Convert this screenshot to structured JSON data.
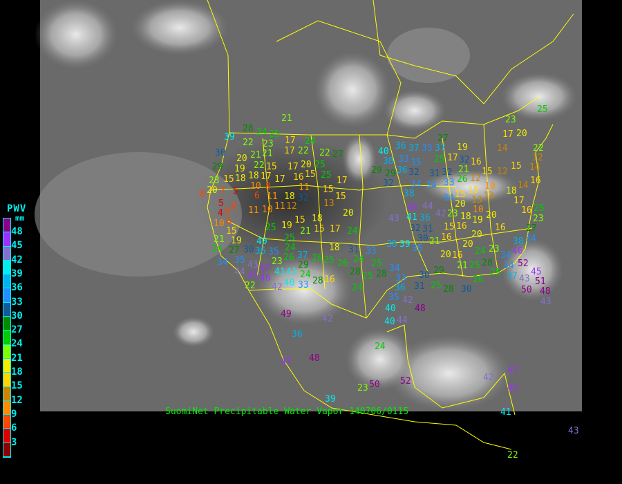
{
  "caption": "SuomiNet Precipitable Water Vapor 140706/0115",
  "legend": {
    "title": "PWV",
    "unit": "mm",
    "ticks": [
      "48",
      "45",
      "42",
      "39",
      "36",
      "33",
      "30",
      "27",
      "24",
      "21",
      "18",
      "15",
      "12",
      "9",
      "6",
      "3"
    ],
    "colors": [
      "#8b008b",
      "#9b30ff",
      "#8470d0",
      "#00eeee",
      "#00b2ee",
      "#1e90ff",
      "#105a9c",
      "#008b00",
      "#00cd00",
      "#7fff00",
      "#eeee00",
      "#ffd700",
      "#cd8500",
      "#ff8c00",
      "#ff4500",
      "#dd0000",
      "#8b0000"
    ]
  },
  "colors": {
    "boundaries": "#ffff00",
    "caption": "#00ee00",
    "background": "#000000"
  },
  "stations": [
    "21",
    "28",
    "24",
    "25",
    "39",
    "30",
    "22",
    "23",
    "21",
    "17",
    "24",
    "17",
    "22",
    "22",
    "27",
    "29",
    "20",
    "21",
    "22",
    "15",
    "19",
    "18",
    "17",
    "18",
    "17",
    "10",
    "8",
    "29",
    "23",
    "20",
    "15",
    "17",
    "20",
    "25",
    "25",
    "15",
    "16",
    "11",
    "17",
    "15",
    "15",
    "13",
    "20",
    "7",
    "8",
    "5",
    "6",
    "11",
    "18",
    "32",
    "12",
    "11",
    "10",
    "11",
    "8",
    "5",
    "4",
    "8",
    "6",
    "10",
    "15",
    "19",
    "15",
    "18",
    "21",
    "15",
    "17",
    "24",
    "25",
    "25",
    "24",
    "18",
    "19",
    "27",
    "21",
    "24",
    "31",
    "33",
    "24",
    "25",
    "30",
    "36",
    "35",
    "26",
    "23",
    "34",
    "35",
    "43",
    "47",
    "41",
    "41",
    "29",
    "24",
    "26",
    "25",
    "26",
    "28",
    "25",
    "28",
    "44",
    "46",
    "45",
    "33",
    "28",
    "16",
    "40",
    "42",
    "22",
    "24",
    "40",
    "37",
    "19",
    "17",
    "32",
    "16",
    "15",
    "12",
    "10",
    "12",
    "15",
    "14",
    "17",
    "20",
    "23",
    "25",
    "22",
    "12",
    "14",
    "16",
    "14",
    "18",
    "17",
    "16",
    "25",
    "23",
    "27",
    "34",
    "38",
    "46",
    "52",
    "45",
    "51",
    "43",
    "37",
    "50",
    "48",
    "43",
    "20",
    "16",
    "20",
    "20",
    "16",
    "24",
    "23",
    "34",
    "21",
    "25",
    "28",
    "25",
    "34",
    "26",
    "28",
    "30",
    "31",
    "36",
    "35",
    "42",
    "40",
    "48",
    "25",
    "29",
    "34",
    "33",
    "38",
    "39",
    "35",
    "30",
    "21",
    "31",
    "32",
    "36",
    "41",
    "46",
    "43",
    "44",
    "42",
    "23",
    "34",
    "20",
    "18",
    "16",
    "19",
    "20",
    "10",
    "13",
    "13",
    "15",
    "15",
    "15",
    "16",
    "34",
    "34",
    "38",
    "33",
    "31",
    "32",
    "32",
    "35",
    "36",
    "37",
    "35",
    "37",
    "27",
    "25",
    "40",
    "38",
    "33",
    "36",
    "29",
    "32",
    "21",
    "26",
    "30",
    "47",
    "42",
    "45",
    "41",
    "43",
    "22",
    "23",
    "50",
    "52",
    "39",
    "24",
    "42",
    "49",
    "36",
    "47",
    "48",
    "44",
    "40"
  ]
}
